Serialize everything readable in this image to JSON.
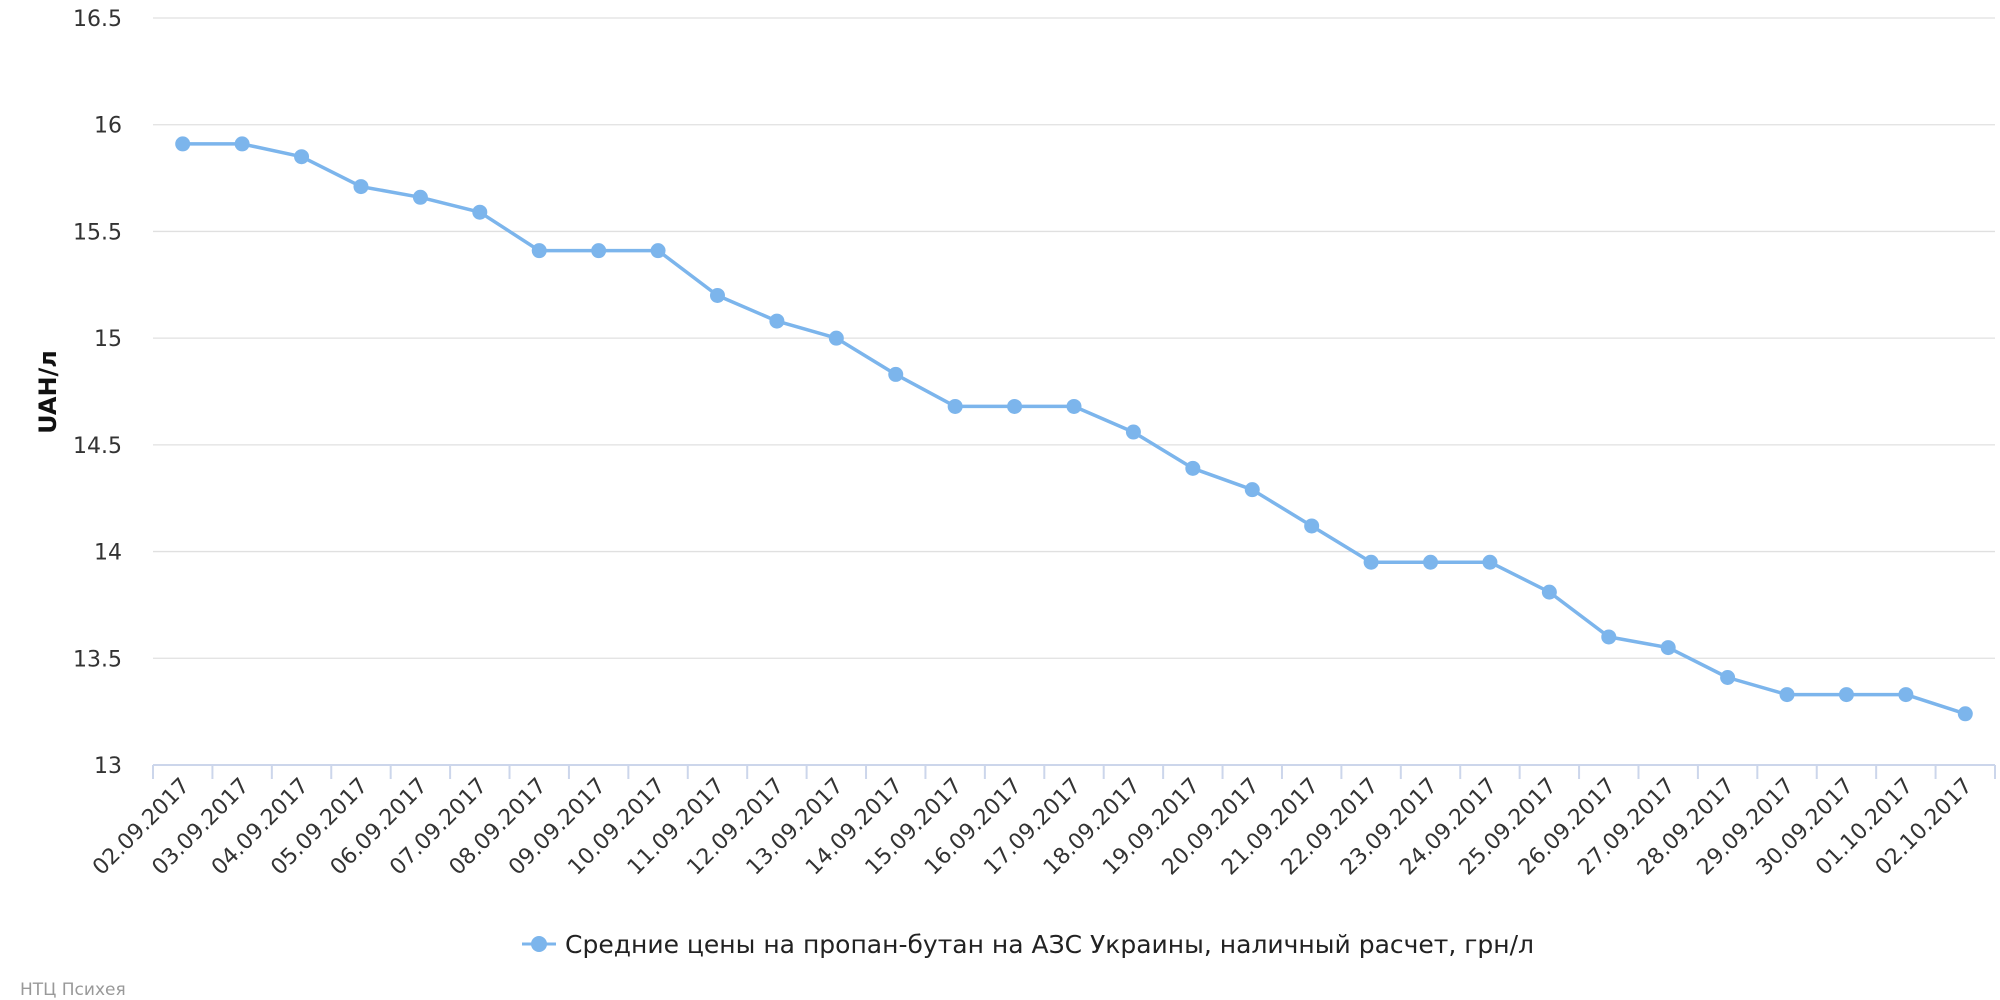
{
  "chart_data": {
    "type": "line",
    "ylabel": "UAH/л",
    "ylim": [
      13,
      16.5
    ],
    "yticks": [
      "13",
      "13.5",
      "14",
      "14.5",
      "15",
      "15.5",
      "16",
      "16.5"
    ],
    "grid": true,
    "legend_position": "bottom-center",
    "categories": [
      "02.09.2017",
      "03.09.2017",
      "04.09.2017",
      "05.09.2017",
      "06.09.2017",
      "07.09.2017",
      "08.09.2017",
      "09.09.2017",
      "10.09.2017",
      "11.09.2017",
      "12.09.2017",
      "13.09.2017",
      "14.09.2017",
      "15.09.2017",
      "16.09.2017",
      "17.09.2017",
      "18.09.2017",
      "19.09.2017",
      "20.09.2017",
      "21.09.2017",
      "22.09.2017",
      "23.09.2017",
      "24.09.2017",
      "25.09.2017",
      "26.09.2017",
      "27.09.2017",
      "28.09.2017",
      "29.09.2017",
      "30.09.2017",
      "01.10.2017",
      "02.10.2017"
    ],
    "series": [
      {
        "name": "Средние цены на пропан-бутан на АЗС Украины, наличный расчет, грн/л",
        "color": "#7cb5ec",
        "values": [
          15.91,
          15.91,
          15.85,
          15.71,
          15.66,
          15.59,
          15.41,
          15.41,
          15.41,
          15.2,
          15.08,
          15.0,
          14.83,
          14.68,
          14.68,
          14.68,
          14.56,
          14.39,
          14.29,
          14.12,
          13.95,
          13.95,
          13.95,
          13.81,
          13.6,
          13.55,
          13.41,
          13.33,
          13.33,
          13.33,
          13.24
        ]
      }
    ]
  },
  "credit": "НТЦ Психея"
}
